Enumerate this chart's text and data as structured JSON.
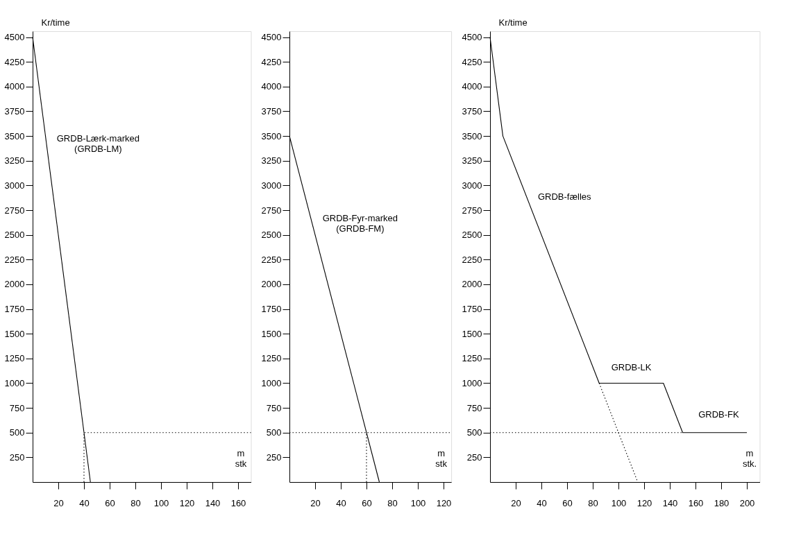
{
  "chart_data": [
    {
      "type": "line",
      "ylabel": "Kr/time",
      "xlabel": "m\nstk",
      "xlim": [
        0,
        170
      ],
      "ylim": [
        0,
        4560
      ],
      "xticks": [
        20,
        40,
        60,
        80,
        100,
        120,
        140,
        160
      ],
      "yticks": [
        250,
        500,
        750,
        1000,
        1250,
        1500,
        1750,
        2000,
        2250,
        2500,
        2750,
        3000,
        3250,
        3500,
        3750,
        4000,
        4250,
        4500
      ],
      "grid": false,
      "marker": "none",
      "series": [
        {
          "color": "#000000",
          "line_style": "solid",
          "x": [
            0,
            45
          ],
          "values": [
            4500,
            0
          ]
        },
        {
          "color": "#000000",
          "line_style": "dotted",
          "x": [
            40,
            40,
            170
          ],
          "values": [
            0,
            500,
            500
          ]
        }
      ],
      "annotations": [
        "GRDB-Lærk-marked\n(GRDB-LM)"
      ]
    },
    {
      "type": "line",
      "xlabel": "m\nstk",
      "xlim": [
        0,
        126
      ],
      "ylim": [
        0,
        4560
      ],
      "xticks": [
        20,
        40,
        60,
        80,
        100,
        120
      ],
      "yticks": [
        250,
        500,
        750,
        1000,
        1250,
        1500,
        1750,
        2000,
        2250,
        2500,
        2750,
        3000,
        3250,
        3500,
        3750,
        4000,
        4250,
        4500
      ],
      "grid": false,
      "marker": "none",
      "series": [
        {
          "color": "#000000",
          "line_style": "solid",
          "x": [
            0,
            70
          ],
          "values": [
            3500,
            0
          ]
        },
        {
          "color": "#000000",
          "line_style": "dotted",
          "x": [
            0,
            126
          ],
          "values": [
            500,
            500
          ]
        },
        {
          "color": "#000000",
          "line_style": "dotted",
          "x": [
            60,
            60
          ],
          "values": [
            0,
            500
          ]
        }
      ],
      "annotations": [
        "GRDB-Fyr-marked\n(GRDB-FM)"
      ]
    },
    {
      "type": "line",
      "ylabel": "Kr/time",
      "xlabel": "m\nstk.",
      "xlim": [
        0,
        210
      ],
      "ylim": [
        0,
        4560
      ],
      "xticks": [
        20,
        40,
        60,
        80,
        100,
        120,
        140,
        160,
        180,
        200
      ],
      "yticks": [
        250,
        500,
        750,
        1000,
        1250,
        1500,
        1750,
        2000,
        2250,
        2500,
        2750,
        3000,
        3250,
        3500,
        3750,
        4000,
        4250,
        4500
      ],
      "grid": false,
      "marker": "none",
      "series": [
        {
          "color": "#000000",
          "line_style": "solid",
          "x": [
            0,
            10,
            85,
            135,
            150,
            200
          ],
          "values": [
            4500,
            3500,
            1000,
            1000,
            500,
            500
          ]
        },
        {
          "color": "#000000",
          "line_style": "dotted",
          "x": [
            0,
            150
          ],
          "values": [
            500,
            500
          ]
        },
        {
          "color": "#000000",
          "line_style": "dotted",
          "x": [
            85,
            115
          ],
          "values": [
            1000,
            0
          ]
        }
      ],
      "annotations": [
        "GRDB-fælles",
        "GRDB-LK",
        "GRDB-FK"
      ]
    }
  ]
}
